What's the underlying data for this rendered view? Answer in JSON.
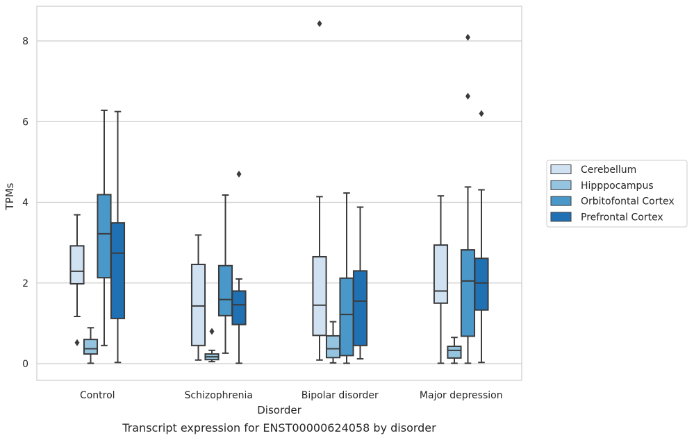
{
  "chart_data": {
    "type": "boxplot",
    "caption": "Transcript expression for ENST00000624058 by disorder",
    "xlabel": "Disorder",
    "ylabel": "TPMs",
    "ylim": [
      -0.4,
      8.85
    ],
    "yticks": [
      0,
      2,
      4,
      6,
      8
    ],
    "grid": "horizontal",
    "legend_position": "right",
    "categories": [
      "Control",
      "Schizophrenia",
      "Bipolar disorder",
      "Major depression"
    ],
    "series": [
      {
        "name": "Cerebellum",
        "color": "#d0e1f2",
        "boxes": [
          {
            "whislo": 1.17,
            "q1": 1.98,
            "med": 2.29,
            "q3": 2.92,
            "whishi": 3.69,
            "fliers": [
              0.52
            ]
          },
          {
            "whislo": 0.09,
            "q1": 0.45,
            "med": 1.43,
            "q3": 2.46,
            "whishi": 3.19,
            "fliers": []
          },
          {
            "whislo": 0.09,
            "q1": 0.7,
            "med": 1.45,
            "q3": 2.65,
            "whishi": 4.14,
            "fliers": [
              8.43
            ]
          },
          {
            "whislo": 0.01,
            "q1": 1.5,
            "med": 1.8,
            "q3": 2.94,
            "whishi": 4.16,
            "fliers": []
          }
        ]
      },
      {
        "name": "Hipppocampus",
        "color": "#94c4df",
        "boxes": [
          {
            "whislo": 0.01,
            "q1": 0.24,
            "med": 0.37,
            "q3": 0.6,
            "whishi": 0.89,
            "fliers": []
          },
          {
            "whislo": 0.05,
            "q1": 0.1,
            "med": 0.17,
            "q3": 0.24,
            "whishi": 0.33,
            "fliers": [
              0.8
            ]
          },
          {
            "whislo": 0.02,
            "q1": 0.15,
            "med": 0.37,
            "q3": 0.69,
            "whishi": 1.04,
            "fliers": []
          },
          {
            "whislo": 0.01,
            "q1": 0.14,
            "med": 0.33,
            "q3": 0.43,
            "whishi": 0.65,
            "fliers": []
          }
        ]
      },
      {
        "name": "Orbitofontal Cortex",
        "color": "#4a98c9",
        "boxes": [
          {
            "whislo": 0.45,
            "q1": 2.13,
            "med": 3.22,
            "q3": 4.19,
            "whishi": 6.28,
            "fliers": []
          },
          {
            "whislo": 0.26,
            "q1": 1.19,
            "med": 1.59,
            "q3": 2.43,
            "whishi": 4.18,
            "fliers": []
          },
          {
            "whislo": 0.01,
            "q1": 0.2,
            "med": 1.22,
            "q3": 2.12,
            "whishi": 4.23,
            "fliers": []
          },
          {
            "whislo": 0.01,
            "q1": 0.68,
            "med": 2.05,
            "q3": 2.82,
            "whishi": 4.38,
            "fliers": [
              6.63,
              8.09
            ]
          }
        ]
      },
      {
        "name": "Prefrontal Cortex",
        "color": "#2070b4",
        "boxes": [
          {
            "whislo": 0.03,
            "q1": 1.12,
            "med": 2.74,
            "q3": 3.49,
            "whishi": 6.25,
            "fliers": []
          },
          {
            "whislo": 0.01,
            "q1": 0.97,
            "med": 1.46,
            "q3": 1.8,
            "whishi": 2.1,
            "fliers": [
              4.7
            ]
          },
          {
            "whislo": 0.12,
            "q1": 0.45,
            "med": 1.55,
            "q3": 2.3,
            "whishi": 3.88,
            "fliers": []
          },
          {
            "whislo": 0.03,
            "q1": 1.33,
            "med": 2.0,
            "q3": 2.61,
            "whishi": 4.31,
            "fliers": [
              6.2
            ]
          }
        ]
      }
    ]
  },
  "colors": {
    "frame": "#cccccc",
    "grid": "#cccccc",
    "line": "#3b3b3b",
    "text": "#262626"
  }
}
